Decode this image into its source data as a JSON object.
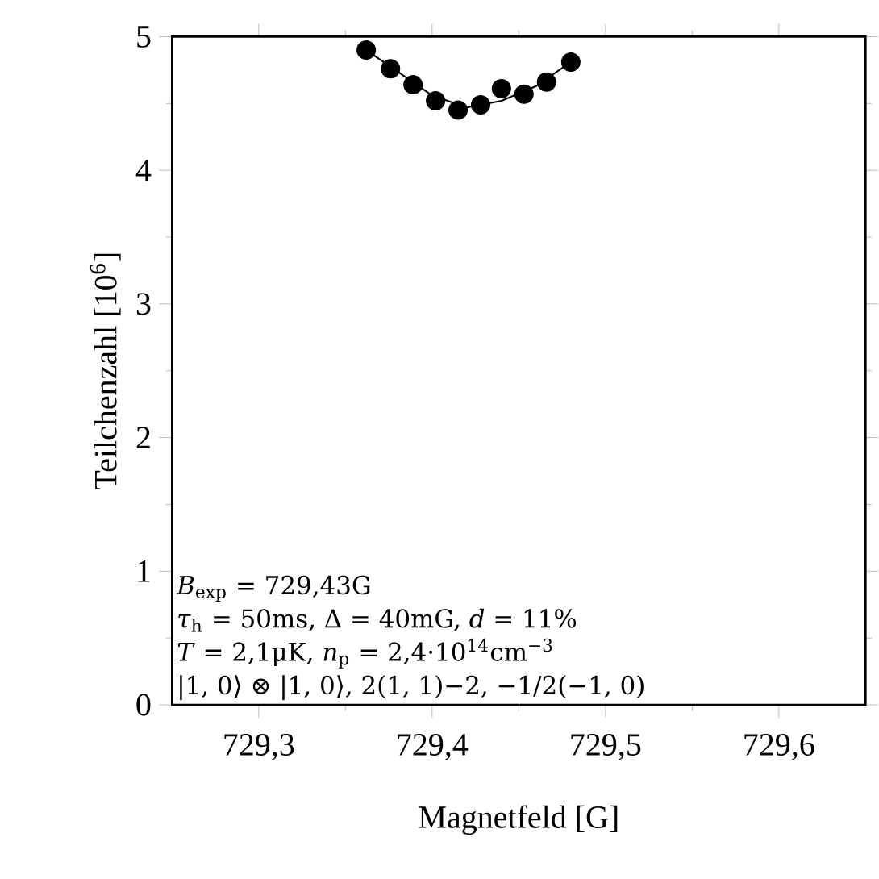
{
  "chart_data": {
    "type": "scatter",
    "xlabel": "Magnetfeld [G]",
    "ylabel": "Teilchenzahl [10$^{6}$]",
    "xlim": [
      729.25,
      729.65
    ],
    "ylim": [
      0,
      5
    ],
    "xticks": [
      {
        "value": 729.3,
        "label": "729,3"
      },
      {
        "value": 729.4,
        "label": "729,4"
      },
      {
        "value": 729.5,
        "label": "729,5"
      },
      {
        "value": 729.6,
        "label": "729,6"
      }
    ],
    "yticks": [
      0,
      1,
      2,
      3,
      4,
      5
    ],
    "series": [
      {
        "color": "#000000",
        "marker": "circle",
        "x": [
          729.362,
          729.376,
          729.389,
          729.402,
          729.415,
          729.428,
          729.44,
          729.453,
          729.466,
          729.48
        ],
        "values": [
          4.9,
          4.76,
          4.64,
          4.52,
          4.45,
          4.49,
          4.61,
          4.57,
          4.66,
          4.81
        ]
      },
      {
        "type": "line",
        "color": "#000000",
        "marker": "none",
        "line_style": "solid",
        "x": [
          729.362,
          729.38,
          729.4,
          729.42,
          729.44,
          729.46,
          729.48
        ],
        "values": [
          4.9,
          4.74,
          4.56,
          4.47,
          4.52,
          4.63,
          4.81
        ]
      }
    ],
    "annotations": [
      "*B*$_{exp}$ = 729,43G",
      "*τ*$_{h}$ = 50ms,  Δ = 40mG,  *d* = 11%",
      "*T* = 2,1μK,  *n*$_{p}$ = 2,4·10$^{14}$cm$^{−3}$",
      "|1, 0⟩ ⊗ |1, 0⟩,  2(1, 1)−2, −1/2(−1, 0)"
    ]
  }
}
